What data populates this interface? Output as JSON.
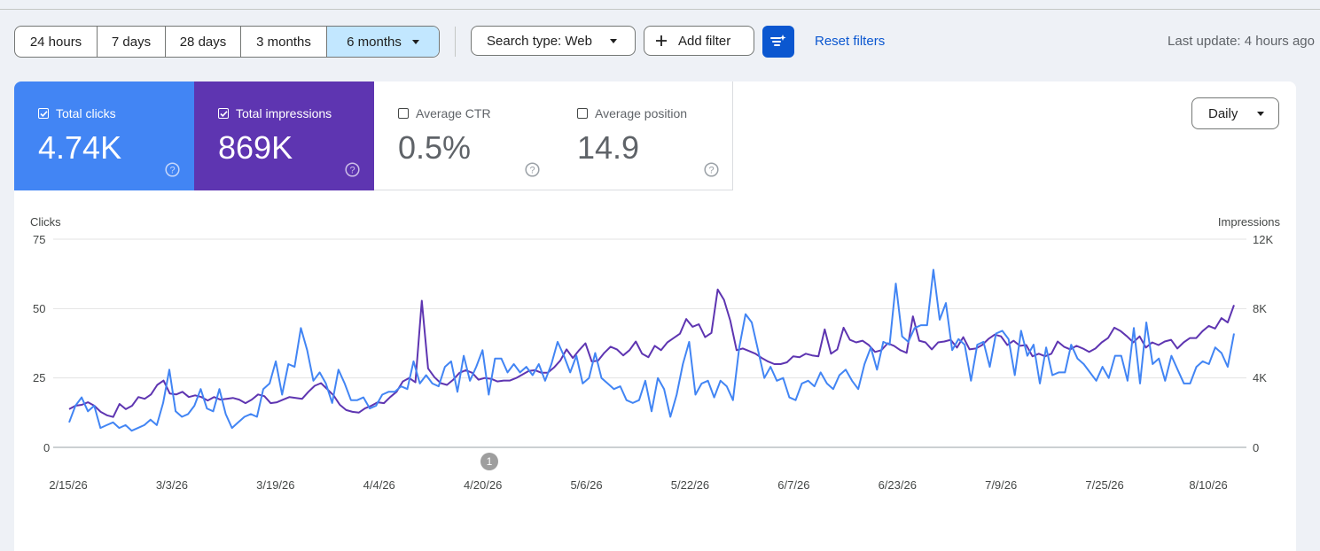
{
  "time_range": {
    "options": [
      "24 hours",
      "7 days",
      "28 days",
      "3 months",
      "6 months"
    ],
    "selected": "6 months"
  },
  "search_type": "Search type: Web",
  "add_filter": "Add filter",
  "reset_filters": "Reset filters",
  "last_update": "Last update: 4 hours ago",
  "metrics": [
    {
      "label": "Total clicks",
      "value": "4.74K",
      "checked": true
    },
    {
      "label": "Total impressions",
      "value": "869K",
      "checked": true
    },
    {
      "label": "Average CTR",
      "value": "0.5%",
      "checked": false
    },
    {
      "label": "Average position",
      "value": "14.9",
      "checked": false
    }
  ],
  "granularity": "Daily",
  "annotation_count": "1",
  "colors": {
    "clicks": "#4285f4",
    "impressions": "#5e35b1",
    "selected_range": "#c2e7ff",
    "accent": "#0b57d0"
  },
  "icons": [
    "chevron-down-icon",
    "plus-icon",
    "filter-sparkle-icon",
    "checkbox-icon",
    "help-icon"
  ],
  "chart_data": {
    "type": "line",
    "xlabel": "",
    "y_left_label": "Clicks",
    "y_right_label": "Impressions",
    "y_left_ticks": [
      "0",
      "25",
      "50",
      "75"
    ],
    "y_right_ticks": [
      "0",
      "4K",
      "8K",
      "12K"
    ],
    "ylim_left": [
      0,
      75
    ],
    "ylim_right": [
      0,
      12000
    ],
    "x_tick_labels": [
      "2/15/26",
      "3/3/26",
      "3/19/26",
      "4/4/26",
      "4/20/26",
      "5/6/26",
      "5/22/26",
      "6/7/26",
      "6/23/26",
      "7/9/26",
      "7/25/26",
      "8/10/26"
    ],
    "x_start": "2/15/26",
    "legend": "none",
    "grid": true,
    "series": [
      {
        "name": "Total clicks",
        "axis": "left",
        "values": [
          9,
          15,
          18,
          13,
          15,
          7,
          8,
          9,
          7,
          8,
          6,
          7,
          8,
          10,
          8,
          16,
          28,
          13,
          11,
          12,
          15,
          21,
          14,
          13,
          21,
          12,
          7,
          9,
          11,
          12,
          11,
          21,
          23,
          31,
          19,
          30,
          29,
          43,
          35,
          24,
          27,
          23,
          16,
          28,
          23,
          17,
          17,
          18,
          14,
          15,
          19,
          20,
          20,
          22,
          21,
          31,
          23,
          26,
          23,
          22,
          29,
          31,
          20,
          33,
          24,
          29,
          35,
          19,
          32,
          32,
          27,
          30,
          27,
          29,
          26,
          30,
          24,
          30,
          38,
          33,
          27,
          33,
          23,
          25,
          34,
          25,
          23,
          21,
          22,
          17,
          16,
          17,
          24,
          13,
          25,
          21,
          11,
          19,
          30,
          38,
          19,
          23,
          24,
          18,
          24,
          22,
          17,
          36,
          48,
          45,
          35,
          25,
          29,
          24,
          25,
          18,
          17,
          23,
          24,
          22,
          27,
          23,
          21,
          26,
          28,
          24,
          21,
          30,
          36,
          28,
          38,
          37,
          59,
          40,
          38,
          43,
          44,
          44,
          64,
          46,
          52,
          35,
          39,
          37,
          24,
          37,
          38,
          29,
          41,
          42,
          39,
          26,
          42,
          33,
          37,
          23,
          36,
          26,
          27,
          27,
          37,
          32,
          30,
          27,
          24,
          29,
          25,
          33,
          33,
          24,
          43,
          23,
          45,
          30,
          32,
          24,
          33,
          28,
          23,
          23,
          29,
          31,
          30,
          36,
          34,
          29,
          41
        ]
      },
      {
        "name": "Total impressions",
        "axis": "right",
        "values": [
          2200,
          2400,
          2450,
          2600,
          2400,
          2050,
          1850,
          1750,
          2500,
          2200,
          2400,
          2900,
          2800,
          3050,
          3600,
          3850,
          3100,
          3050,
          3200,
          2900,
          3000,
          2900,
          2700,
          2900,
          2750,
          2800,
          2850,
          2750,
          2550,
          2750,
          3050,
          2950,
          2550,
          2600,
          2750,
          2900,
          2850,
          2800,
          3200,
          3550,
          3700,
          3350,
          3000,
          2450,
          2150,
          2050,
          2000,
          2250,
          2400,
          2600,
          2550,
          2900,
          3200,
          3800,
          4000,
          3750,
          8450,
          4550,
          4050,
          3700,
          3600,
          3900,
          4300,
          4450,
          4300,
          3900,
          4000,
          3950,
          3800,
          3850,
          3850,
          4000,
          4200,
          4400,
          4450,
          4300,
          4300,
          4600,
          5000,
          5650,
          5150,
          5600,
          6000,
          4950,
          5000,
          5450,
          5800,
          5650,
          5300,
          5600,
          6100,
          5400,
          5200,
          5850,
          5600,
          6050,
          6300,
          6550,
          7400,
          6950,
          7100,
          6350,
          6600,
          9100,
          8500,
          7300,
          5600,
          5700,
          5550,
          5400,
          5150,
          4950,
          4800,
          4800,
          4900,
          5250,
          5200,
          5400,
          5300,
          5250,
          6800,
          5400,
          5650,
          6900,
          6200,
          6050,
          6150,
          5900,
          5500,
          5600,
          6000,
          5850,
          5600,
          5450,
          7550,
          6150,
          6050,
          5650,
          6050,
          6100,
          6200,
          5750,
          6350,
          5650,
          5700,
          5900,
          6250,
          6500,
          6400,
          5900,
          6150,
          5850,
          5900,
          5250,
          5400,
          5250,
          5400,
          6100,
          5800,
          5650,
          5850,
          5700,
          5500,
          5700,
          6050,
          6300,
          6900,
          6700,
          6400,
          6050,
          6400,
          5750,
          6050,
          5900,
          6100,
          6200,
          5700,
          6050,
          6300,
          6300,
          6700,
          7000,
          6850,
          7450,
          7200,
          8200
        ]
      }
    ]
  }
}
